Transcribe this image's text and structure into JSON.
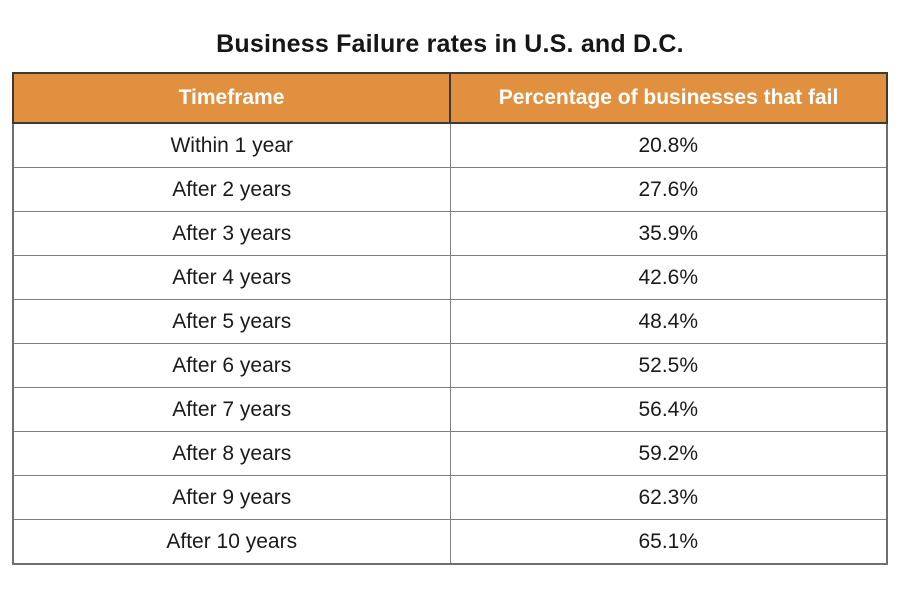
{
  "title": "Business Failure rates in U.S. and D.C.",
  "table": {
    "columns": [
      "Timeframe",
      "Percentage of businesses that fail"
    ],
    "rows": [
      [
        "Within 1 year",
        "20.8%"
      ],
      [
        "After 2 years",
        "27.6%"
      ],
      [
        "After 3 years",
        "35.9%"
      ],
      [
        "After 4 years",
        "42.6%"
      ],
      [
        "After 5 years",
        "48.4%"
      ],
      [
        "After 6 years",
        "52.5%"
      ],
      [
        "After 7 years",
        "56.4%"
      ],
      [
        "After 8 years",
        "59.2%"
      ],
      [
        "After 9 years",
        "62.3%"
      ],
      [
        "After 10 years",
        "65.1%"
      ]
    ]
  },
  "colors": {
    "header_bg": "#e0903e",
    "header_text": "#ffffff",
    "grid_line": "#7f7f7f",
    "header_border": "#3d3a35",
    "body_text": "#1a1a1a",
    "background": "#ffffff"
  },
  "chart_data": {
    "type": "table",
    "title": "Business Failure rates in U.S. and D.C.",
    "columns": [
      "Timeframe",
      "Percentage of businesses that fail"
    ],
    "categories": [
      "Within 1 year",
      "After 2 years",
      "After 3 years",
      "After 4 years",
      "After 5 years",
      "After 6 years",
      "After 7 years",
      "After 8 years",
      "After 9 years",
      "After 10 years"
    ],
    "values": [
      20.8,
      27.6,
      35.9,
      42.6,
      48.4,
      52.5,
      56.4,
      59.2,
      62.3,
      65.1
    ],
    "value_unit": "%",
    "legend_position": "none",
    "grid": true
  }
}
